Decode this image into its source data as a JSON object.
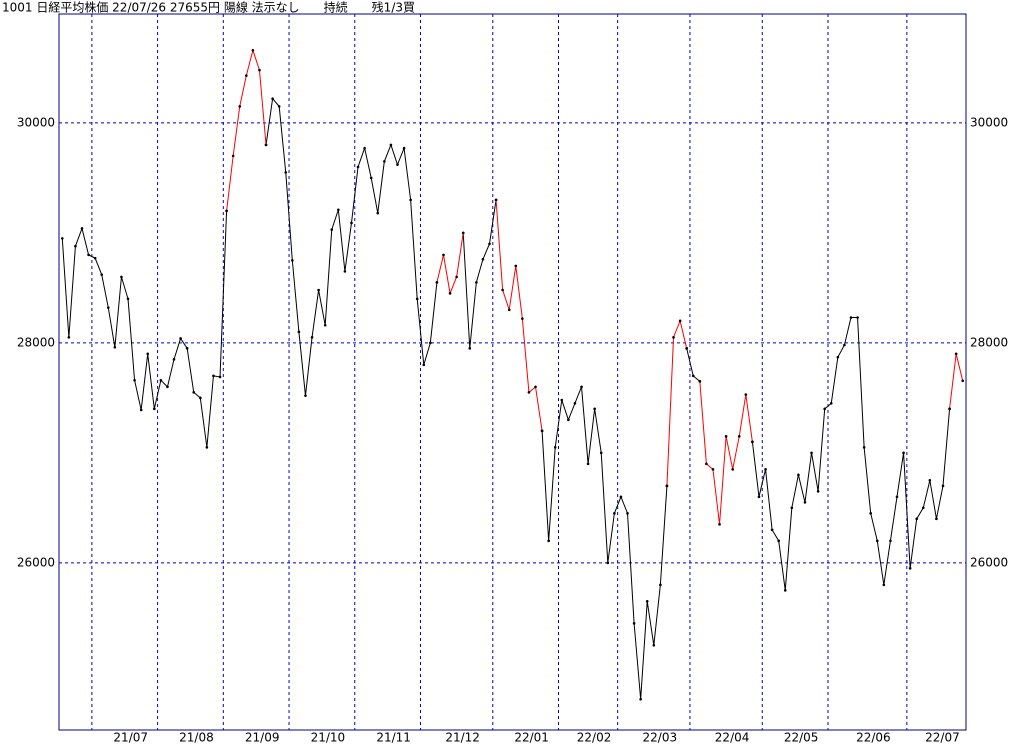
{
  "chart_data": {
    "type": "line",
    "title": "1001 日経平均株価 22/07/26 27655円 陽線 法示なし　　持続　　残1/3買",
    "categories": [
      null,
      null,
      null,
      null,
      null,
      "21/07",
      null,
      null,
      null,
      null,
      null,
      null,
      null,
      null,
      null,
      "21/08",
      null,
      null,
      null,
      null,
      null,
      null,
      null,
      null,
      null,
      "21/09",
      null,
      null,
      null,
      null,
      null,
      null,
      null,
      null,
      null,
      "21/10",
      null,
      null,
      null,
      null,
      null,
      null,
      null,
      null,
      null,
      "21/11",
      null,
      null,
      null,
      null,
      null,
      null,
      null,
      null,
      null,
      "21/12",
      null,
      null,
      null,
      null,
      null,
      null,
      null,
      null,
      null,
      null,
      "22/01",
      null,
      null,
      null,
      null,
      null,
      null,
      null,
      null,
      null,
      "22/02",
      null,
      null,
      null,
      null,
      null,
      null,
      null,
      null,
      "22/03",
      null,
      null,
      null,
      null,
      null,
      null,
      null,
      null,
      null,
      null,
      "22/04",
      null,
      null,
      null,
      null,
      null,
      null,
      null,
      null,
      null,
      null,
      "22/05",
      null,
      null,
      null,
      null,
      null,
      null,
      null,
      null,
      null,
      "22/06",
      null,
      null,
      null,
      null,
      null,
      null,
      null,
      null,
      null,
      null,
      null,
      "22/07",
      null,
      null,
      null,
      null,
      null,
      null,
      null,
      null
    ],
    "series": [
      {
        "color": "#000000",
        "values": [
          28950,
          28050,
          28880,
          29040,
          28800,
          28770,
          28620,
          28320,
          27960,
          28600,
          28400,
          27660,
          27390,
          27900,
          27400,
          27660,
          27600,
          27850,
          28040,
          27950,
          27550,
          27500,
          27050,
          27700,
          27690,
          29200,
          null,
          null,
          null,
          null,
          null,
          29800,
          30220,
          30150,
          29550,
          28750,
          28100,
          27520,
          28050,
          28480,
          28160,
          29030,
          29210,
          28650,
          29090,
          29600,
          29770,
          29500,
          29180,
          29650,
          29800,
          29620,
          29770,
          29300,
          28400,
          27800,
          28000,
          28550,
          null,
          null,
          null,
          29000,
          27950,
          28550,
          28760,
          28900,
          29300,
          null,
          null,
          null,
          null,
          null,
          null,
          27200,
          26200,
          27050,
          27480,
          27300,
          27450,
          27600,
          26900,
          27400,
          27000,
          26000,
          26450,
          26600,
          26450,
          25450,
          24760,
          25650,
          25250,
          25800,
          26700,
          null,
          null,
          27950,
          27700,
          27650,
          null,
          null,
          null,
          null,
          null,
          null,
          null,
          27100,
          26600,
          26850,
          26300,
          26200,
          25750,
          26500,
          26800,
          26550,
          27000,
          26650,
          27400,
          27450,
          27870,
          27980,
          28230,
          28230,
          27050,
          26450,
          26200,
          25800,
          26200,
          26600,
          27000,
          25950,
          26400,
          26500,
          26750,
          26400,
          26700,
          27400,
          null,
          null
        ]
      },
      {
        "color": "#ff0000",
        "values": [
          null,
          null,
          null,
          null,
          null,
          null,
          null,
          null,
          null,
          null,
          null,
          null,
          null,
          null,
          null,
          null,
          null,
          null,
          null,
          null,
          null,
          null,
          null,
          null,
          null,
          29200,
          29700,
          30150,
          30430,
          30660,
          30480,
          29800,
          null,
          null,
          null,
          null,
          null,
          null,
          null,
          null,
          null,
          null,
          null,
          null,
          null,
          null,
          null,
          null,
          null,
          null,
          null,
          null,
          null,
          null,
          null,
          null,
          null,
          28550,
          28800,
          28450,
          28600,
          29000,
          null,
          null,
          null,
          null,
          29300,
          28480,
          28300,
          28700,
          28220,
          27550,
          27600,
          27200,
          null,
          null,
          null,
          null,
          null,
          null,
          null,
          null,
          null,
          null,
          null,
          null,
          null,
          null,
          null,
          null,
          null,
          null,
          26700,
          28050,
          28200,
          27950,
          null,
          27650,
          26900,
          26850,
          26350,
          27150,
          26850,
          27150,
          27530,
          27100,
          null,
          null,
          null,
          null,
          null,
          null,
          null,
          null,
          null,
          null,
          null,
          null,
          null,
          null,
          null,
          null,
          null,
          null,
          null,
          null,
          null,
          null,
          null,
          null,
          null,
          null,
          null,
          null,
          null,
          27400,
          27900,
          27655
        ]
      }
    ],
    "marker_color": "#000000",
    "ylim": [
      24480,
      30990
    ],
    "yticks": [
      26000,
      28000,
      30000
    ],
    "grid": true,
    "grid_color": "#0000cc",
    "frame_color": "#00008b"
  }
}
